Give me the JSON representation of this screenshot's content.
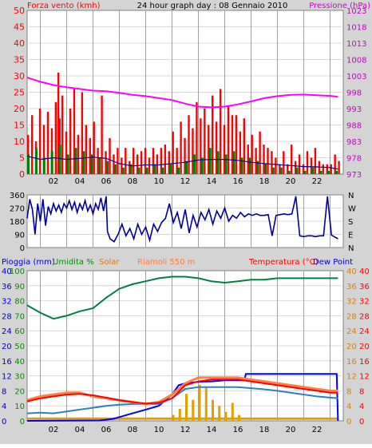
{
  "title": "24 hour graph day : 08 Gennaio 2010",
  "colors": {
    "frame_bg": "#d4d4d4",
    "plot_bg": "#ffffff",
    "grid": "#a0a0a0",
    "wind": "#ff0000",
    "gust_dark": "#cc0000",
    "wind_avg": "#008000",
    "wind_dir": "#000099",
    "pressure": "#ff00ff",
    "rain": "#0000ff",
    "humidity": "#008040",
    "solar": "#e0a000",
    "riamoli": "#ff8040",
    "temperature": "#ff0000",
    "dewpoint": "#3080c0",
    "label_red": "#ff0000",
    "label_blue": "#0000cc",
    "label_magenta": "#cc00cc",
    "label_green": "#009000",
    "label_orange": "#e08000"
  },
  "chart_data": [
    {
      "type": "bar",
      "name": "wind",
      "left_title": "Forza vento (kmh)",
      "right_title": "Pressione (hPa)",
      "x_ticks": [
        "02",
        "04",
        "06",
        "08",
        "10",
        "12",
        "14",
        "16",
        "18",
        "20",
        "22"
      ],
      "ylim": [
        0,
        50
      ],
      "y_ticks": [
        0,
        5,
        10,
        15,
        20,
        25,
        30,
        35,
        40,
        45,
        50
      ],
      "y2lim": [
        973,
        1023
      ],
      "y2_ticks": [
        973,
        978,
        983,
        988,
        993,
        998,
        1003,
        1008,
        1013,
        1018,
        1023
      ],
      "series": [
        {
          "color": "wind",
          "x": [
            0.0,
            0.3,
            0.6,
            0.9,
            1.2,
            1.5,
            1.8,
            2.1,
            2.3,
            2.4,
            2.6,
            2.9,
            3.2,
            3.5,
            3.8,
            4.1,
            4.4,
            4.7,
            5.0,
            5.3,
            5.6,
            5.9,
            6.2,
            6.5,
            6.8,
            7.1,
            7.4,
            7.7,
            8.0,
            8.3,
            8.6,
            8.9,
            9.2,
            9.5,
            9.8,
            10.1,
            10.4,
            10.7,
            11.0,
            11.3,
            11.6,
            11.9,
            12.2,
            12.5,
            12.8,
            13.1,
            13.4,
            13.7,
            14.0,
            14.3,
            14.6,
            14.9,
            15.2,
            15.5,
            15.8,
            16.1,
            16.4,
            16.7,
            17.0,
            17.3,
            17.6,
            17.9,
            18.2,
            18.5,
            18.8,
            19.1,
            19.4,
            19.7,
            20.0,
            20.3,
            20.6,
            20.9,
            21.2,
            21.5,
            21.8,
            22.1,
            22.4,
            22.7,
            23.0,
            23.3,
            23.6
          ],
          "y": [
            12,
            18,
            10,
            20,
            15,
            19,
            14,
            22,
            31,
            17,
            24,
            13,
            20,
            26,
            12,
            25,
            15,
            11,
            16,
            8,
            24,
            7,
            11,
            6,
            8,
            5,
            8,
            4,
            8,
            6,
            7,
            8,
            5,
            8,
            6,
            8,
            9,
            7,
            13,
            8,
            16,
            11,
            18,
            14,
            22,
            17,
            20,
            15,
            24,
            16,
            26,
            15,
            21,
            18,
            18,
            13,
            17,
            9,
            12,
            8,
            13,
            9,
            8,
            7,
            5,
            3,
            7,
            3,
            9,
            4,
            6,
            3,
            7,
            5,
            8,
            4,
            3,
            3,
            3,
            6,
            4
          ]
        },
        {
          "color": "wind_avg",
          "x": [
            0.0,
            0.6,
            1.2,
            1.8,
            2.4,
            3.0,
            3.6,
            4.2,
            4.8,
            5.4,
            6.0,
            6.6,
            7.2,
            7.8,
            8.4,
            9.0,
            9.6,
            10.2,
            10.8,
            11.4,
            12.0,
            12.6,
            13.2,
            13.8,
            14.4,
            15.0,
            15.6,
            16.2,
            16.8,
            17.4,
            18.0,
            18.6,
            19.2,
            19.8,
            20.4,
            21.0,
            21.6,
            22.2,
            22.8,
            23.4
          ],
          "y": [
            6,
            8,
            5,
            7,
            9,
            6,
            8,
            7,
            6,
            5,
            4,
            3,
            2,
            3,
            2,
            2,
            3,
            2,
            3,
            2,
            4,
            6,
            5,
            8,
            7,
            6,
            7,
            5,
            5,
            4,
            3,
            2,
            2,
            1,
            2,
            1,
            2,
            1,
            1,
            1
          ]
        },
        {
          "color": "wind_dir",
          "x": [
            0.0,
            1.0,
            2.0,
            3.0,
            4.0,
            5.0,
            6.0,
            7.0,
            8.0,
            9.0,
            10.0,
            11.0,
            12.0,
            13.0,
            14.0,
            15.0,
            16.0,
            17.0,
            18.0,
            19.0,
            20.0,
            21.0,
            22.0,
            23.0,
            23.6
          ],
          "y": [
            5.5,
            4.5,
            5,
            4.5,
            4.8,
            5.2,
            4.8,
            3.2,
            2.5,
            2.8,
            2.8,
            3.2,
            3.6,
            4.3,
            4.5,
            4.5,
            4.2,
            3.6,
            3.2,
            2.9,
            2.6,
            2.3,
            2.2,
            2.0,
            1.5
          ]
        },
        {
          "color": "pressure",
          "axis": "right",
          "x": [
            0,
            1,
            2,
            3,
            4,
            5,
            6,
            7,
            8,
            9,
            10,
            11,
            12,
            13,
            14,
            15,
            16,
            17,
            18,
            19,
            20,
            21,
            22,
            23,
            23.6
          ],
          "y": [
            1002.5,
            1001.2,
            1000.2,
            999.5,
            999,
            998.5,
            998.3,
            997.8,
            997.2,
            996.8,
            996.2,
            995.6,
            994.5,
            993.6,
            993.4,
            993.6,
            994.3,
            995.2,
            996.2,
            996.8,
            997.2,
            997.3,
            997.1,
            996.9,
            996.6
          ]
        }
      ]
    },
    {
      "type": "line",
      "name": "wind_direction",
      "ylim": [
        0,
        360
      ],
      "y_ticks": [
        0,
        90,
        180,
        270,
        360
      ],
      "right_ticks": [
        "N",
        "W",
        "S",
        "E",
        "N"
      ],
      "series": [
        {
          "color": "wind_dir",
          "x": [
            0.0,
            0.2,
            0.4,
            0.6,
            0.8,
            1.0,
            1.2,
            1.4,
            1.6,
            1.8,
            2.0,
            2.2,
            2.4,
            2.6,
            2.8,
            3.0,
            3.2,
            3.4,
            3.6,
            3.8,
            4.0,
            4.2,
            4.4,
            4.6,
            4.8,
            5.0,
            5.2,
            5.4,
            5.6,
            5.8,
            6.0,
            6.1,
            6.3,
            6.6,
            6.9,
            7.2,
            7.5,
            7.8,
            8.1,
            8.4,
            8.7,
            9.0,
            9.3,
            9.6,
            9.9,
            10.2,
            10.5,
            10.8,
            11.1,
            11.4,
            11.7,
            12.0,
            12.3,
            12.6,
            12.9,
            13.2,
            13.5,
            13.8,
            14.1,
            14.4,
            14.7,
            15.0,
            15.3,
            15.6,
            15.9,
            16.2,
            16.5,
            16.8,
            17.1,
            17.4,
            17.7,
            18.0,
            18.3,
            18.6,
            18.9,
            19.2,
            19.5,
            19.8,
            20.1,
            20.4,
            20.7,
            21.0,
            21.3,
            21.6,
            21.9,
            22.2,
            22.5,
            22.8,
            23.1,
            23.4,
            23.6
          ],
          "y": [
            200,
            330,
            260,
            90,
            300,
            180,
            330,
            150,
            280,
            230,
            300,
            250,
            290,
            240,
            300,
            270,
            320,
            260,
            310,
            240,
            300,
            260,
            320,
            250,
            290,
            230,
            300,
            260,
            340,
            250,
            350,
            110,
            60,
            40,
            90,
            160,
            80,
            130,
            60,
            160,
            90,
            140,
            50,
            160,
            110,
            170,
            200,
            300,
            170,
            240,
            130,
            260,
            100,
            220,
            140,
            240,
            190,
            260,
            160,
            250,
            200,
            270,
            180,
            220,
            200,
            240,
            210,
            230,
            220,
            230,
            220,
            220,
            225,
            80,
            220,
            225,
            230,
            225,
            230,
            350,
            80,
            75,
            80,
            80,
            75,
            80,
            80,
            350,
            85,
            70,
            60
          ]
        }
      ]
    },
    {
      "type": "line",
      "name": "humidity_temperature",
      "legend": [
        "Pioggia (mm)",
        "Umidita %",
        "Solar",
        "Riamoli 550 m",
        "Temperatura (°C)",
        "Dew Point"
      ],
      "x_ticks": [
        "02",
        "04",
        "06",
        "08",
        "10",
        "12",
        "14",
        "16",
        "18",
        "20",
        "22"
      ],
      "y_ticks_humidity": [
        0,
        10,
        20,
        30,
        40,
        50,
        60,
        70,
        80,
        90,
        100
      ],
      "y_ticks_rain": [
        0,
        4,
        8,
        12,
        16,
        20,
        24,
        28,
        32,
        36,
        40
      ],
      "y_ticks_temp": [
        0,
        4,
        8,
        12,
        16,
        20,
        24,
        28,
        32,
        36,
        40
      ],
      "series": [
        {
          "color": "humidity",
          "x": [
            0,
            1,
            2,
            3,
            4,
            5,
            6,
            7,
            8,
            9,
            10,
            11,
            12,
            13,
            14,
            15,
            16,
            17,
            18,
            19,
            20,
            21,
            22,
            23,
            23.6
          ],
          "y": [
            77,
            72,
            68,
            70,
            73,
            75,
            82,
            88,
            91,
            93,
            95,
            96,
            96,
            95,
            93,
            92,
            93,
            94,
            94,
            95,
            95,
            95,
            95,
            95,
            95
          ]
        },
        {
          "color": "rain",
          "x": [
            0,
            5.5,
            6.5,
            7.0,
            8.0,
            9.0,
            10.0,
            11.0,
            11.5,
            12.0,
            13.0,
            14.0,
            15.0,
            16.0,
            16.5,
            16.6,
            17.0,
            18.0,
            20.0,
            23.5,
            23.6
          ],
          "y": [
            0,
            0.1,
            0.5,
            1.0,
            2.0,
            3.0,
            4.0,
            7.0,
            9.5,
            10.0,
            10.4,
            10.5,
            10.8,
            10.8,
            10.8,
            12.5,
            12.5,
            12.5,
            12.5,
            12.5,
            0
          ]
        },
        {
          "color": "solar",
          "x": [
            0,
            10.5,
            11.0,
            11.5,
            12.0,
            12.5,
            13.0,
            13.5,
            14.0,
            14.5,
            15.0,
            15.5,
            16.0,
            16.3,
            17.0,
            23.6
          ],
          "y": [
            1,
            1,
            2,
            4,
            9,
            7,
            12,
            11,
            7,
            5,
            3,
            6,
            2,
            1,
            1,
            1
          ]
        },
        {
          "color": "riamoli",
          "x": [
            0,
            1,
            2,
            3,
            4,
            5,
            6,
            7,
            8,
            9,
            10,
            11,
            12,
            13,
            14,
            15,
            16,
            17,
            18,
            19,
            20,
            21,
            22,
            23,
            23.6
          ],
          "y": [
            5.5,
            6.5,
            7.0,
            7.5,
            7.5,
            6.5,
            6.0,
            5.5,
            5.0,
            4.5,
            5.0,
            7.0,
            10.0,
            11.5,
            11.5,
            11.5,
            11.5,
            11.0,
            10.5,
            10.0,
            9.5,
            9.0,
            8.5,
            8.0,
            8.0
          ]
        },
        {
          "color": "temperature",
          "x": [
            0,
            1,
            2,
            3,
            4,
            5,
            6,
            7,
            8,
            9,
            10,
            11,
            12,
            13,
            14,
            15,
            16,
            17,
            18,
            19,
            20,
            21,
            22,
            23,
            23.6
          ],
          "y": [
            5.2,
            6.0,
            6.5,
            7.0,
            7.2,
            6.8,
            6.2,
            5.5,
            5.0,
            4.6,
            4.8,
            6.0,
            9.5,
            10.5,
            11.0,
            11.0,
            11.0,
            10.5,
            10.0,
            9.5,
            9.0,
            8.5,
            8.0,
            7.5,
            7.5
          ]
        },
        {
          "color": "dewpoint",
          "x": [
            0,
            1,
            2,
            3,
            4,
            5,
            6,
            7,
            8,
            9,
            10,
            11,
            12,
            13,
            14,
            15,
            16,
            17,
            18,
            19,
            20,
            21,
            22,
            23,
            23.6
          ],
          "y": [
            2.0,
            2.2,
            2.0,
            2.5,
            3.0,
            3.5,
            4.0,
            4.3,
            4.5,
            4.5,
            4.5,
            6.0,
            8.5,
            9.0,
            9.0,
            9.0,
            9.0,
            8.7,
            8.4,
            8.0,
            7.5,
            7.0,
            6.5,
            6.2,
            6.0
          ]
        }
      ]
    }
  ]
}
